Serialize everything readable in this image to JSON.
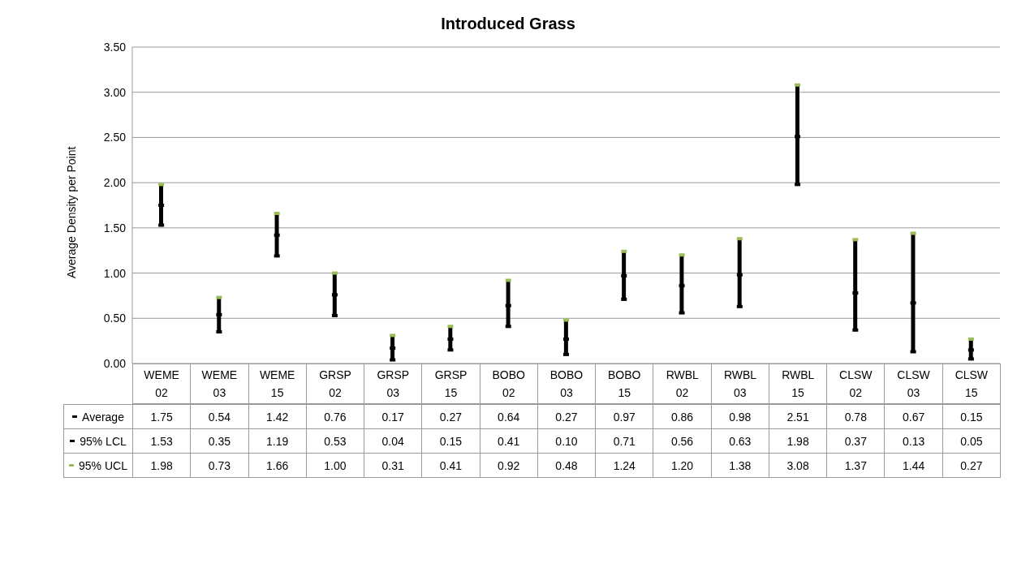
{
  "chart_data": {
    "type": "bar",
    "title": "Introduced Grass",
    "ylabel": "Average Density per Point",
    "categories": [
      "WEME 02",
      "WEME 03",
      "WEME 15",
      "GRSP 02",
      "GRSP 03",
      "GRSP 15",
      "BOBO 02",
      "BOBO 03",
      "BOBO 15",
      "RWBL 02",
      "RWBL 03",
      "RWBL 15",
      "CLSW 02",
      "CLSW 03",
      "CLSW 15"
    ],
    "base": [
      1.53,
      0.35,
      1.19,
      0.53,
      0.04,
      0.15,
      0.41,
      0.1,
      0.71,
      0.56,
      0.63,
      1.98,
      0.37,
      0.13,
      0.05
    ],
    "values": [
      0.45,
      0.38,
      0.47,
      0.47,
      0.27,
      0.26,
      0.51,
      0.38,
      0.53,
      0.64,
      0.75,
      1.1,
      1.0,
      1.31,
      0.22
    ],
    "color": "#000000",
    "series": [
      {
        "name": "Average",
        "type": "scatter",
        "marker": "square",
        "color": "#000000",
        "values": [
          1.75,
          0.54,
          1.42,
          0.76,
          0.17,
          0.27,
          0.64,
          0.27,
          0.97,
          0.86,
          0.98,
          2.51,
          0.78,
          0.67,
          0.15
        ],
        "value_labels": [
          "1.75",
          "0.54",
          "1.42",
          "0.76",
          "0.17",
          "0.27",
          "0.64",
          "0.27",
          "0.97",
          "0.86",
          "0.98",
          "2.51",
          "0.78",
          "0.67",
          "0.15"
        ]
      },
      {
        "name": "95% LCL",
        "type": "scatter",
        "marker": "square",
        "color": "#000000",
        "values": [
          1.53,
          0.35,
          1.19,
          0.53,
          0.04,
          0.15,
          0.41,
          0.1,
          0.71,
          0.56,
          0.63,
          1.98,
          0.37,
          0.13,
          0.05
        ],
        "value_labels": [
          "1.53",
          "0.35",
          "1.19",
          "0.53",
          "0.04",
          "0.15",
          "0.41",
          "0.10",
          "0.71",
          "0.56",
          "0.63",
          "1.98",
          "0.37",
          "0.13",
          "0.05"
        ]
      },
      {
        "name": "95% UCL",
        "type": "scatter",
        "marker": "square",
        "color": "#9bbb59",
        "values": [
          1.98,
          0.73,
          1.66,
          1.0,
          0.31,
          0.41,
          0.92,
          0.48,
          1.24,
          1.2,
          1.38,
          3.08,
          1.37,
          1.44,
          0.27
        ],
        "value_labels": [
          "1.98",
          "0.73",
          "1.66",
          "1.00",
          "0.31",
          "0.41",
          "0.92",
          "0.48",
          "1.24",
          "1.20",
          "1.38",
          "3.08",
          "1.37",
          "1.44",
          "0.27"
        ]
      }
    ],
    "ylim": [
      0,
      3.5
    ],
    "yticks": [
      {
        "value": 0,
        "label": "0.00"
      },
      {
        "value": 0.5,
        "label": "0.50"
      },
      {
        "value": 1,
        "label": "1.00"
      },
      {
        "value": 1.5,
        "label": "1.50"
      },
      {
        "value": 2,
        "label": "2.00"
      },
      {
        "value": 2.5,
        "label": "2.50"
      },
      {
        "value": 3,
        "label": "3.00"
      },
      {
        "value": 3.5,
        "label": "3.50"
      }
    ],
    "grid": "y",
    "legend": "bottom"
  }
}
